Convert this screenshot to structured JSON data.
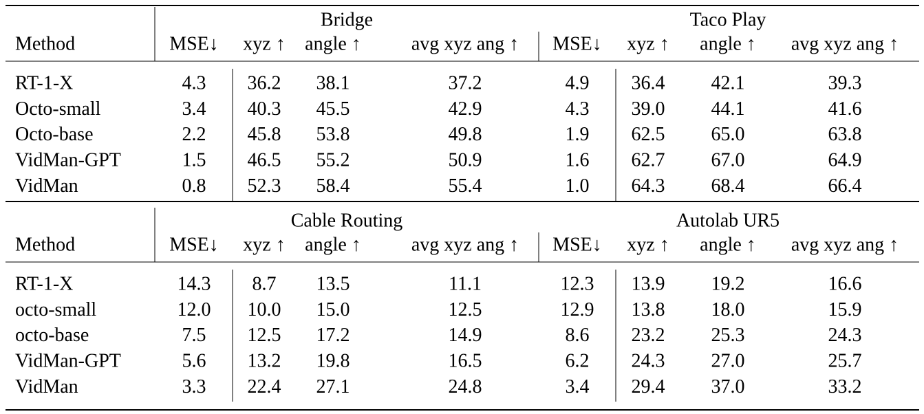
{
  "tables": [
    {
      "groups": [
        "Bridge",
        "Taco Play"
      ],
      "columns": [
        "Method",
        "MSE↓",
        "xyz ↑",
        "angle ↑",
        "avg xyz ang ↑",
        "MSE↓",
        "xyz ↑",
        "angle ↑",
        "avg xyz ang ↑"
      ],
      "rows": [
        [
          "RT-1-X",
          "4.3",
          "36.2",
          "38.1",
          "37.2",
          "4.9",
          "36.4",
          "42.1",
          "39.3"
        ],
        [
          "Octo-small",
          "3.4",
          "40.3",
          "45.5",
          "42.9",
          "4.3",
          "39.0",
          "44.1",
          "41.6"
        ],
        [
          "Octo-base",
          "2.2",
          "45.8",
          "53.8",
          "49.8",
          "1.9",
          "62.5",
          "65.0",
          "63.8"
        ],
        [
          "VidMan-GPT",
          "1.5",
          "46.5",
          "55.2",
          "50.9",
          "1.6",
          "62.7",
          "67.0",
          "64.9"
        ],
        [
          "VidMan",
          "0.8",
          "52.3",
          "58.4",
          "55.4",
          "1.0",
          "64.3",
          "68.4",
          "66.4"
        ]
      ]
    },
    {
      "groups": [
        "Cable Routing",
        "Autolab UR5"
      ],
      "columns": [
        "Method",
        "MSE↓",
        "xyz ↑",
        "angle ↑",
        "avg xyz ang ↑",
        "MSE↓",
        "xyz ↑",
        "angle ↑",
        "avg xyz ang ↑"
      ],
      "rows": [
        [
          "RT-1-X",
          "14.3",
          "8.7",
          "13.5",
          "11.1",
          "12.3",
          "13.9",
          "19.2",
          "16.6"
        ],
        [
          "octo-small",
          "12.0",
          "10.0",
          "15.0",
          "12.5",
          "12.9",
          "13.8",
          "18.0",
          "15.9"
        ],
        [
          "octo-base",
          "7.5",
          "12.5",
          "17.2",
          "14.9",
          "8.6",
          "23.2",
          "25.3",
          "24.3"
        ],
        [
          "VidMan-GPT",
          "5.6",
          "13.2",
          "19.8",
          "16.5",
          "6.2",
          "24.3",
          "27.0",
          "25.7"
        ],
        [
          "VidMan",
          "3.3",
          "22.4",
          "27.1",
          "24.8",
          "3.4",
          "29.4",
          "37.0",
          "33.2"
        ]
      ]
    }
  ]
}
